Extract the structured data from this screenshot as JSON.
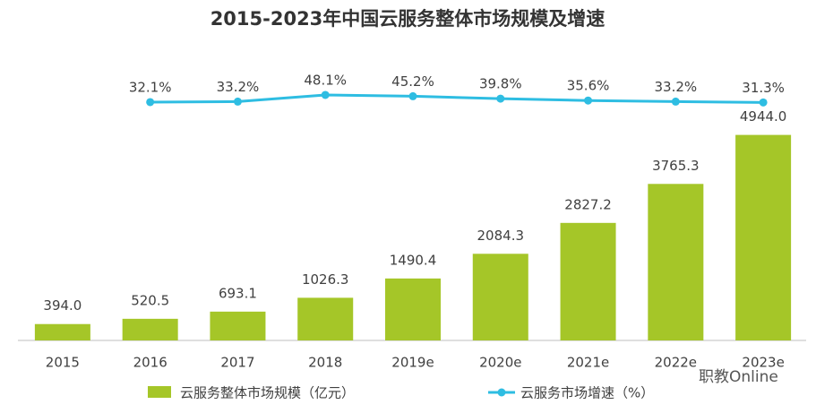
{
  "chart_data": {
    "type": "bar",
    "title": "2015-2023年中国云服务整体市场规模及增速",
    "categories": [
      "2015",
      "2016",
      "2017",
      "2018",
      "2019e",
      "2020e",
      "2021e",
      "2022e",
      "2023e"
    ],
    "series": [
      {
        "name": "云服务整体市场规模（亿元）",
        "type": "bar",
        "color": "#a5c628",
        "values": [
          394.0,
          520.5,
          693.1,
          1026.3,
          1490.4,
          2084.3,
          2827.2,
          3765.3,
          4944.0
        ],
        "value_labels": [
          "394.0",
          "520.5",
          "693.1",
          "1026.3",
          "1490.4",
          "2084.3",
          "2827.2",
          "3765.3",
          "4944.0"
        ]
      },
      {
        "name": "云服务市场增速（%）",
        "type": "line",
        "color": "#2ebde2",
        "axis": "y2",
        "values": [
          null,
          32.1,
          33.2,
          48.1,
          45.2,
          39.8,
          35.6,
          33.2,
          31.3
        ],
        "value_labels": [
          null,
          "32.1%",
          "33.2%",
          "48.1%",
          "45.2%",
          "39.8%",
          "35.6%",
          "33.2%",
          "31.3%"
        ]
      }
    ],
    "ylim": [
      0,
      5000
    ],
    "y2lim": [
      0,
      100
    ],
    "watermark": "职教Online"
  }
}
